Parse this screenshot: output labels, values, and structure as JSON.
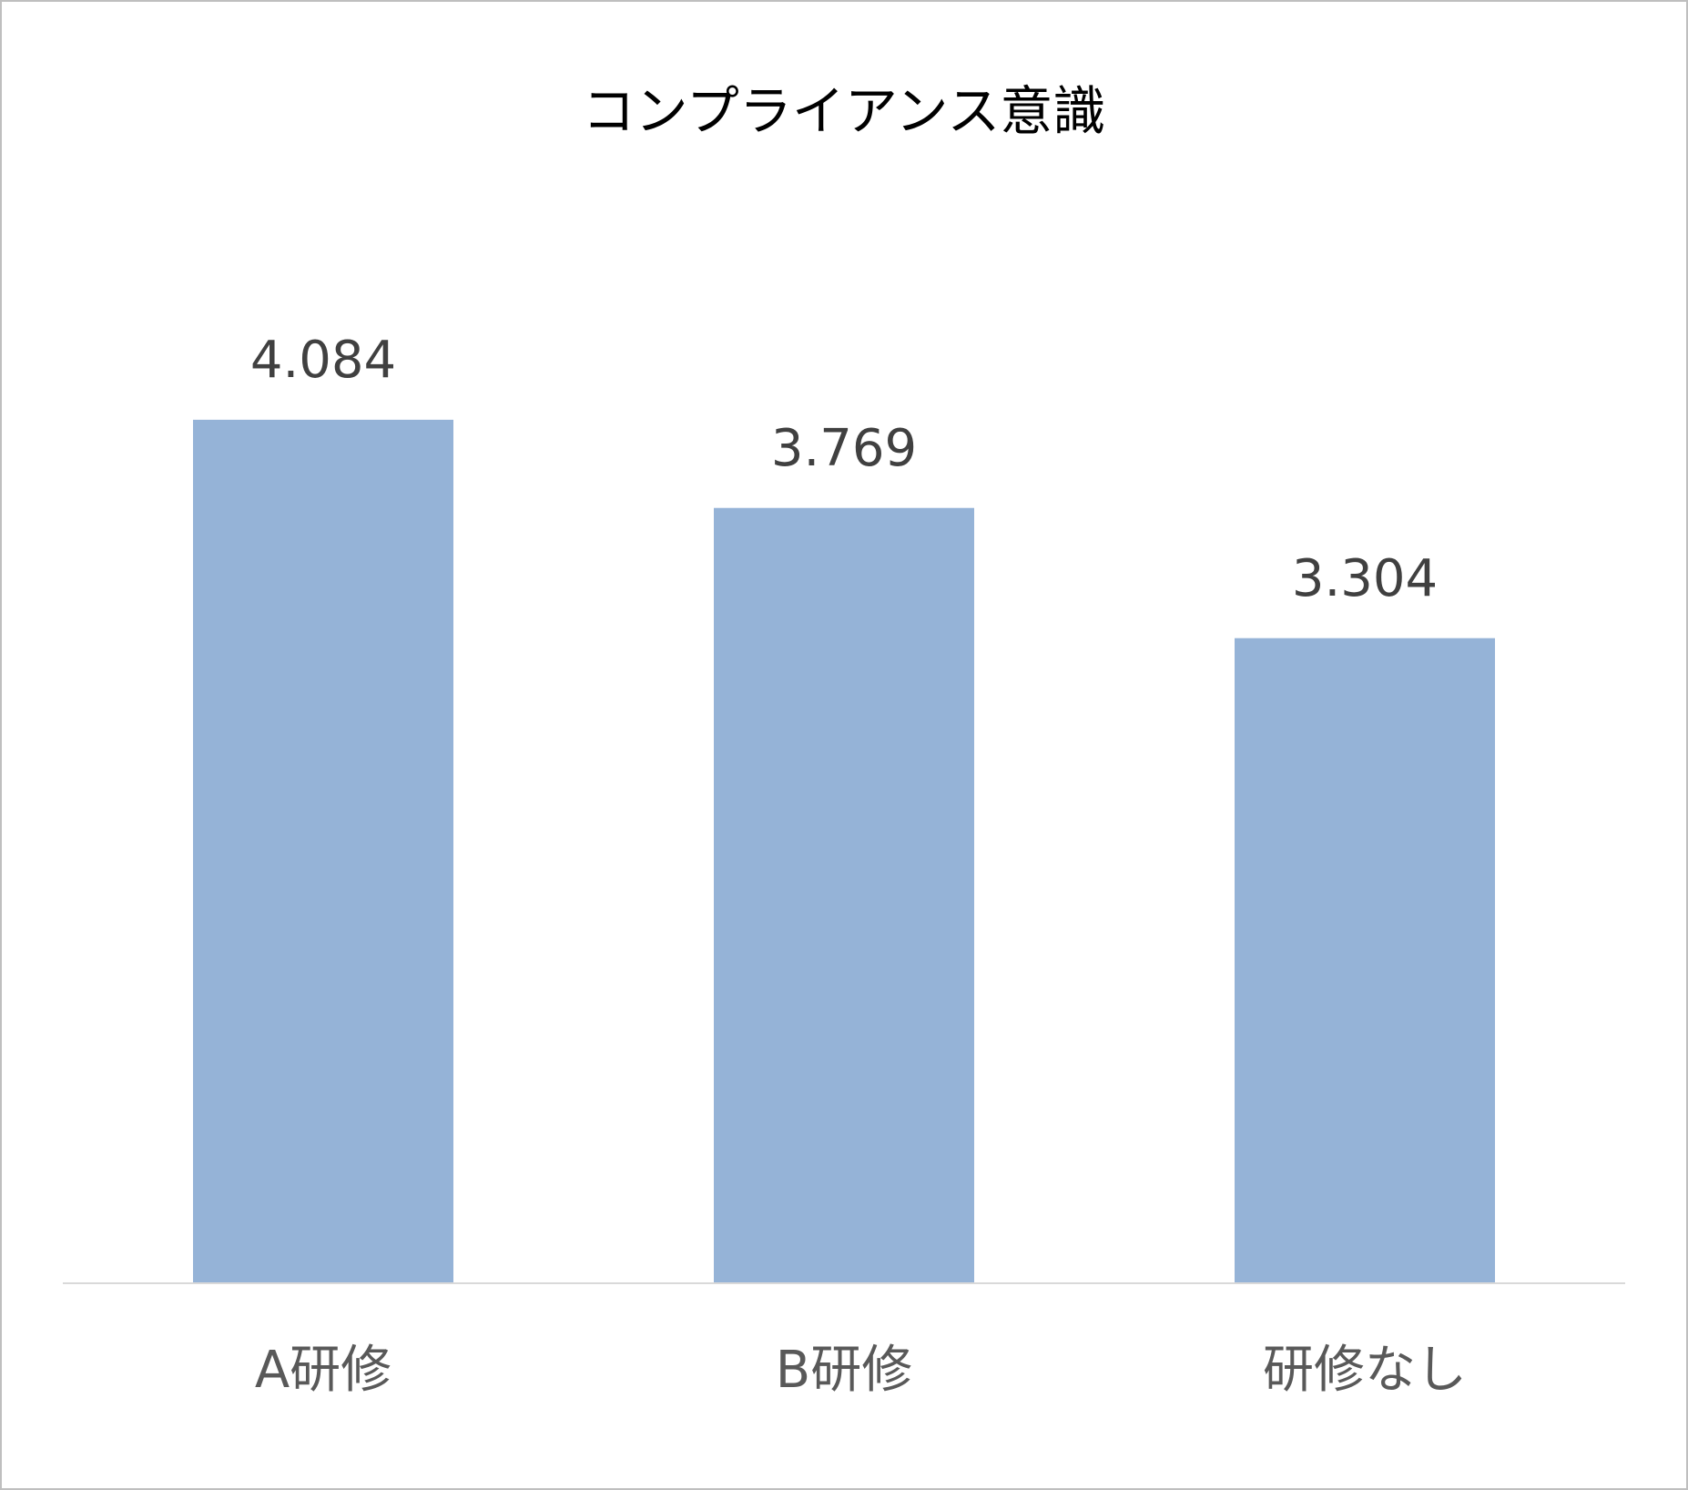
{
  "chart_data": {
    "type": "bar",
    "title": "コンプライアンス意識",
    "categories": [
      "A研修",
      "B研修",
      "研修なし"
    ],
    "values": [
      4.084,
      3.769,
      3.304
    ],
    "color": "#95b3d7",
    "ylim": [
      1,
      4.5
    ]
  }
}
